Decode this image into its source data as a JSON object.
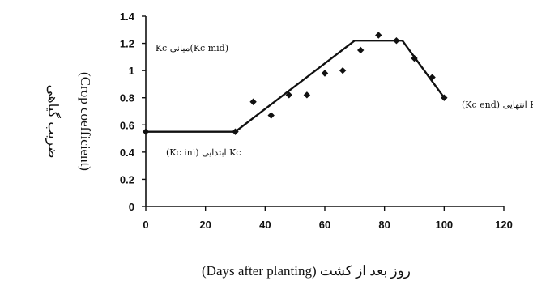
{
  "chart_data": {
    "type": "scatter",
    "xlim": [
      0,
      120
    ],
    "ylim": [
      0,
      1.4
    ],
    "x_ticks": [
      "0",
      "20",
      "40",
      "60",
      "80",
      "100",
      "120"
    ],
    "y_ticks": [
      "0",
      "0.2",
      "0.4",
      "0.6",
      "0.8",
      "1",
      "1.2",
      "1.4"
    ],
    "grid": false,
    "legend": "none",
    "xlabel": "(Days after planting) روز بعد از کشت",
    "ylabel_fa": "ضریب گیاهی",
    "ylabel_en": "(Crop coefficient)",
    "series": [
      {
        "kind": "points",
        "marker": "diamond",
        "color": "#111111",
        "x": [
          0,
          30,
          36,
          42,
          48,
          54,
          60,
          66,
          72,
          78,
          84,
          90,
          96,
          100
        ],
        "y": [
          0.55,
          0.55,
          0.77,
          0.67,
          0.82,
          0.82,
          0.98,
          1.0,
          1.15,
          1.26,
          1.22,
          1.09,
          0.95,
          0.8
        ]
      },
      {
        "kind": "line",
        "color": "#111111",
        "x": [
          0,
          30,
          70,
          86,
          100
        ],
        "y": [
          0.55,
          0.55,
          1.22,
          1.22,
          0.8
        ]
      }
    ],
    "annotations": {
      "ini": "(Kc ini) ابتدایی Kc",
      "mid": "(Kc mid)میانی Kc",
      "end": "(Kc end) انتهایی Kc"
    }
  }
}
